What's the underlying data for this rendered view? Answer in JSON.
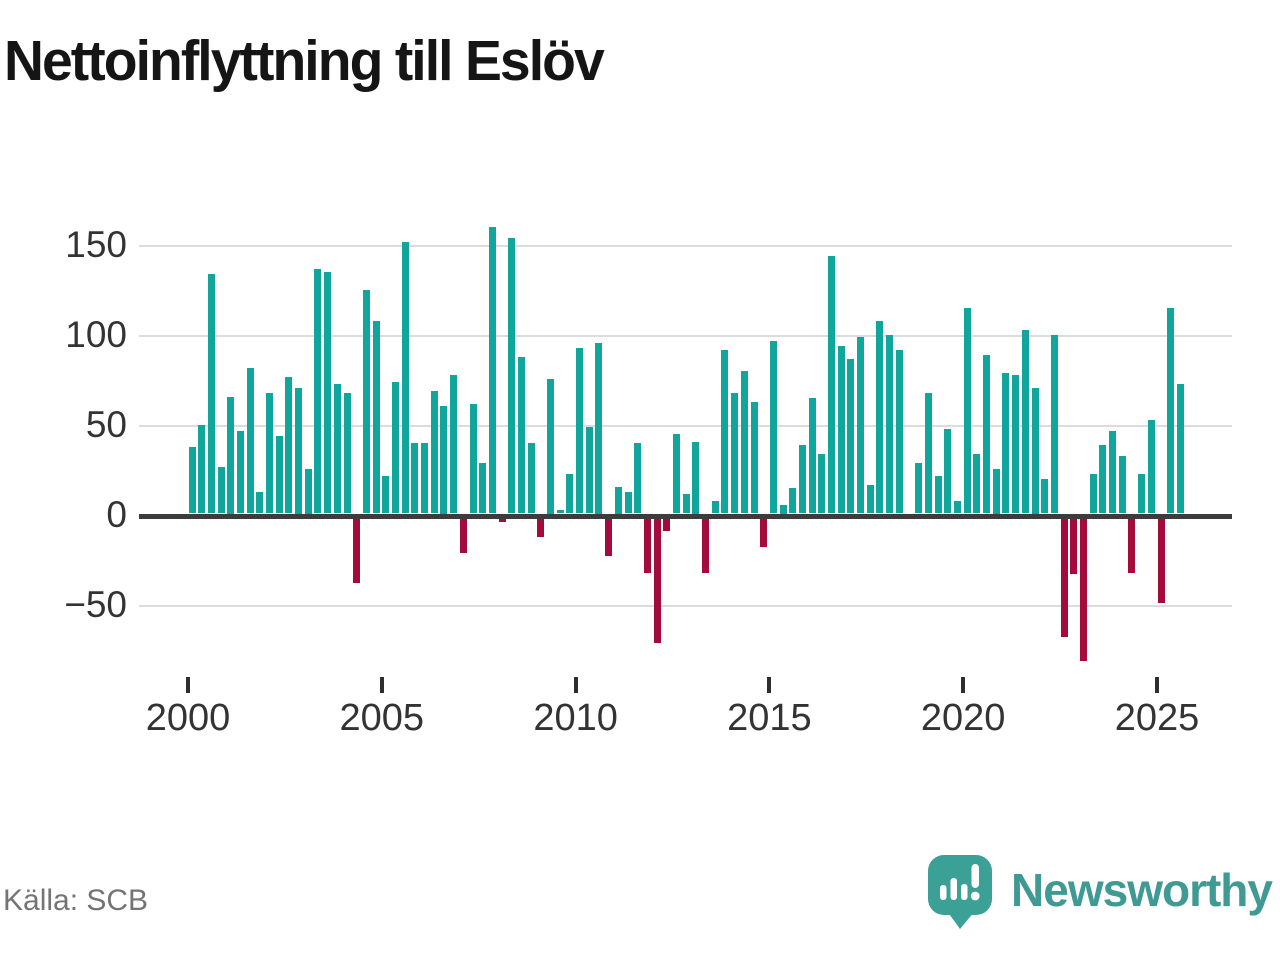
{
  "title": "Nettoinflyttning till Eslöv",
  "source": "Källa: SCB",
  "branding": {
    "logo_text": "Newsworthy",
    "logo_icon": "newsworthy-speech-bubble-bar-chart-icon"
  },
  "colors": {
    "positive_bar": "#10a69b",
    "negative_bar": "#a20b3b",
    "gridline": "#dcdcdc",
    "zero_line": "#3c3c3c",
    "axis_text": "#333333",
    "title_text": "#151515",
    "source_text": "#747474",
    "brand_teal": "#3e9a93"
  },
  "chart_data": {
    "type": "bar",
    "title": "Nettoinflyttning till Eslöv",
    "frequency": "quarterly",
    "start_year": 2000,
    "start_quarter": 1,
    "values": [
      37,
      49,
      133,
      26,
      65,
      46,
      81,
      12,
      67,
      43,
      76,
      70,
      25,
      136,
      134,
      72,
      67,
      -36,
      124,
      107,
      21,
      73,
      151,
      39,
      39,
      68,
      60,
      77,
      -19,
      61,
      28,
      159,
      -2,
      153,
      87,
      39,
      -10,
      75,
      2,
      22,
      92,
      48,
      95,
      -21,
      15,
      12,
      39,
      -30,
      -69,
      -7,
      44,
      11,
      40,
      -30,
      7,
      91,
      67,
      79,
      62,
      -16,
      96,
      5,
      14,
      38,
      64,
      33,
      143,
      93,
      86,
      98,
      16,
      107,
      99,
      91,
      0,
      28,
      67,
      21,
      47,
      7,
      114,
      33,
      88,
      25,
      78,
      77,
      102,
      70,
      19,
      99,
      -66,
      -31,
      -79,
      22,
      38,
      46,
      32,
      -30,
      22,
      52,
      -47,
      114,
      72
    ],
    "y_ticks": [
      150,
      100,
      50,
      0,
      -50
    ],
    "x_tick_years": [
      2000,
      2005,
      2010,
      2015,
      2020,
      2025
    ],
    "ylim": [
      -80,
      162
    ],
    "grid": true,
    "legend": "none",
    "xlabel": "",
    "ylabel": ""
  }
}
